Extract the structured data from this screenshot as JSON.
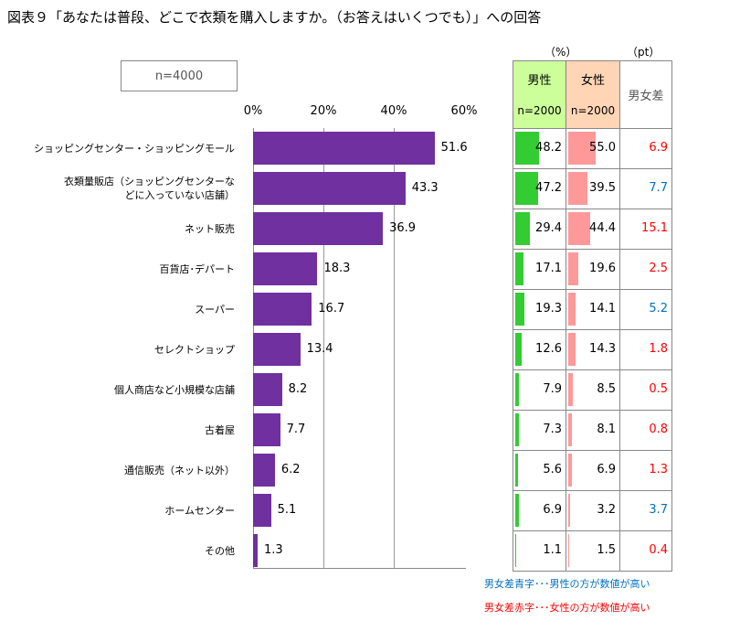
{
  "title": "図表９「あなたは普段、どこで衣類を購入しますか。（お答えはいくつでも）」への回答",
  "n_label": "n=4000",
  "chart_data": {
    "type": "bar",
    "orientation": "horizontal",
    "xlim": [
      0,
      60
    ],
    "ticks": [
      "0%",
      "20%",
      "40%",
      "60%"
    ],
    "grid": true,
    "bar_color": "#7030a0",
    "categories": [
      "ショッピングセンター・ショッピングモール",
      "衣類量販店（ショッピングセンターな\nどに入っていない店舗）",
      "ネット販売",
      "百貨店･デパート",
      "スーパー",
      "セレクトショップ",
      "個人商店など小規模な店舗",
      "古着屋",
      "通信販売（ネット以外）",
      "ホームセンター",
      "その他"
    ],
    "values": [
      51.6,
      43.3,
      36.9,
      18.3,
      16.7,
      13.4,
      8.2,
      7.7,
      6.2,
      5.1,
      1.3
    ]
  },
  "table": {
    "unit_pct": "（%）",
    "unit_pt": "（pt）",
    "male_header": "男性",
    "female_header": "女性",
    "n_male": "n=2000",
    "n_female": "n=2000",
    "diff_header": "男女差",
    "male_color": "#33cc33",
    "female_color": "#ff9999",
    "male_header_bg": "#ccff99",
    "female_header_bg": "#ffd5b5",
    "male": [
      "48.2",
      "47.2",
      "29.4",
      "17.1",
      "19.3",
      "12.6",
      "7.9",
      "7.3",
      "5.6",
      "6.9",
      "1.1"
    ],
    "female": [
      "55.0",
      "39.5",
      "44.4",
      "19.6",
      "14.1",
      "14.3",
      "8.5",
      "8.1",
      "6.9",
      "3.2",
      "1.5"
    ],
    "diff": [
      "6.9",
      "7.7",
      "15.1",
      "2.5",
      "5.2",
      "1.8",
      "0.5",
      "0.8",
      "1.3",
      "3.7",
      "0.4"
    ],
    "diff_side": [
      "female",
      "male",
      "female",
      "female",
      "male",
      "female",
      "female",
      "female",
      "female",
      "male",
      "female"
    ],
    "blue": "#0070c0",
    "red": "#ff0000"
  },
  "notes": {
    "blue": "男女差青字･･･男性の方が数値が高い",
    "red": "男女差赤字･･･女性の方が数値が高い"
  }
}
